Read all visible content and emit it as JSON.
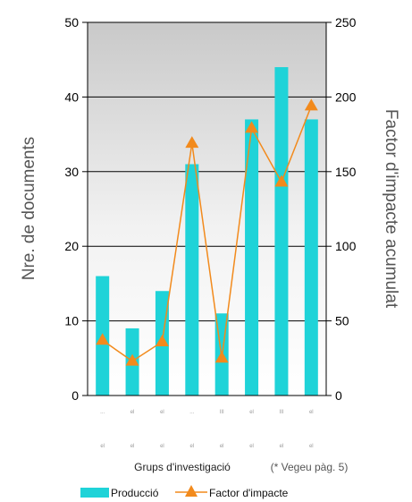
{
  "chart_data": {
    "type": "bar",
    "categories": [
      "...",
      "el",
      "el",
      "...",
      "III",
      "el",
      "III",
      "el"
    ],
    "categories_row2": [
      "el",
      "el",
      "el",
      "el",
      "el",
      "el",
      "el",
      "el"
    ],
    "series": [
      {
        "name": "Producció",
        "type": "bar",
        "axis": "left",
        "values": [
          16,
          9,
          14,
          31,
          11,
          37,
          44,
          37
        ],
        "color": "#1fd3d8"
      },
      {
        "name": "Factor d'impacte",
        "type": "line",
        "axis": "right",
        "values": [
          37,
          23,
          36,
          169,
          25,
          179,
          143,
          194
        ],
        "color": "#f28a1c"
      }
    ],
    "xlabel": "Grups d'investigació",
    "xlabel_note": "(* Vegeu pàg. 5)",
    "ylabel": "Nre. de documents",
    "y2label": "Factor d'impacte acumulat",
    "ylim": [
      0,
      50
    ],
    "y2lim": [
      0,
      250
    ],
    "yticks": [
      0,
      10,
      20,
      30,
      40,
      50
    ],
    "y2ticks": [
      0,
      50,
      100,
      150,
      200,
      250
    ],
    "grid": true,
    "legend_position": "bottom"
  }
}
